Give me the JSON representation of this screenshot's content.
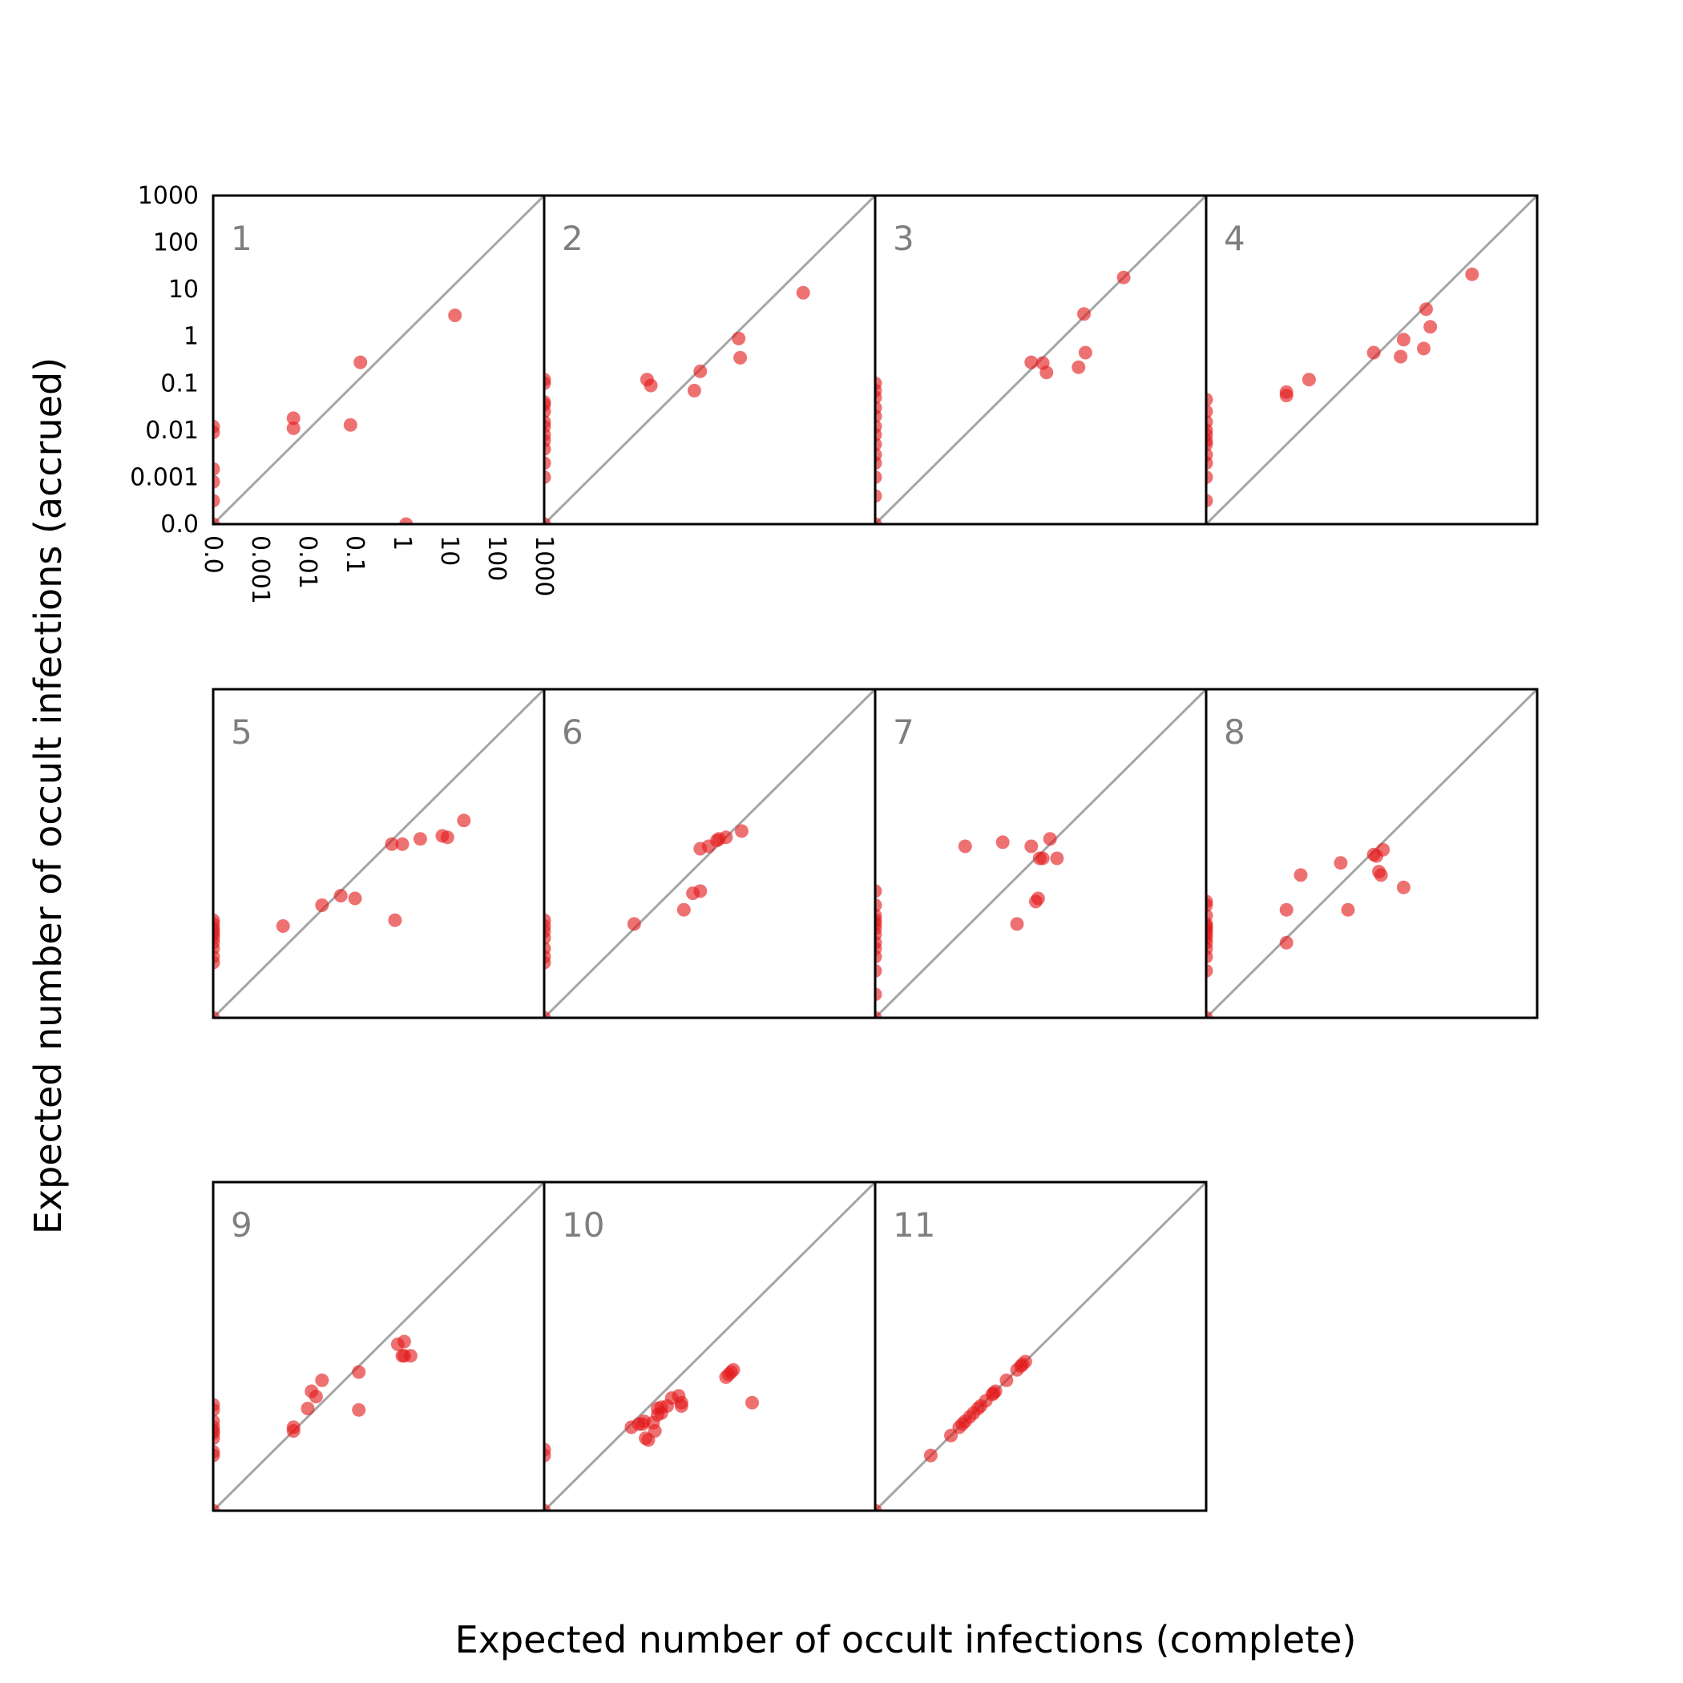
{
  "chart_data": {
    "type": "scatter",
    "title": "",
    "xlabel": "Expected number of occult infections (complete)",
    "ylabel": "Expected number of occult infections (accrued)",
    "scale": "symlog",
    "linthresh": 0.001,
    "xlim": [
      0,
      1000
    ],
    "ylim": [
      0,
      1000
    ],
    "tick_values": [
      0,
      0.001,
      0.01,
      0.1,
      1,
      10,
      100,
      1000
    ],
    "tick_labels": [
      "0.0",
      "0.001",
      "0.01",
      "0.1",
      "1",
      "10",
      "100",
      "1000"
    ],
    "reference_line": "y = x",
    "point_color": "#e41a1c",
    "line_color": "#a6a6a6",
    "panels": [
      {
        "label": "1",
        "points": [
          [
            0,
            0
          ],
          [
            0,
            0.0015
          ],
          [
            0,
            0.0009
          ],
          [
            0,
            0.0005
          ],
          [
            0,
            0.012
          ],
          [
            0,
            0.009
          ],
          [
            0.005,
            0.018
          ],
          [
            0.005,
            0.011
          ],
          [
            0.08,
            0.013
          ],
          [
            0.13,
            0.28
          ],
          [
            1.2,
            0
          ],
          [
            13,
            2.8
          ]
        ]
      },
      {
        "label": "2",
        "points": [
          [
            0,
            0
          ],
          [
            0,
            0.12
          ],
          [
            0,
            0.1
          ],
          [
            0,
            0.04
          ],
          [
            0,
            0.035
          ],
          [
            0,
            0.025
          ],
          [
            0,
            0.015
          ],
          [
            0,
            0.012
          ],
          [
            0,
            0.008
          ],
          [
            0,
            0.006
          ],
          [
            0,
            0.004
          ],
          [
            0,
            0.002
          ],
          [
            0,
            0.001
          ],
          [
            0.015,
            0.12
          ],
          [
            0.018,
            0.09
          ],
          [
            0.15,
            0.07
          ],
          [
            0.2,
            0.18
          ],
          [
            1.3,
            0.9
          ],
          [
            1.4,
            0.35
          ],
          [
            30,
            8.5
          ]
        ]
      },
      {
        "label": "3",
        "points": [
          [
            0,
            0
          ],
          [
            0,
            0.1
          ],
          [
            0,
            0.07
          ],
          [
            0,
            0.05
          ],
          [
            0,
            0.03
          ],
          [
            0,
            0.02
          ],
          [
            0,
            0.012
          ],
          [
            0,
            0.008
          ],
          [
            0,
            0.005
          ],
          [
            0,
            0.003
          ],
          [
            0,
            0.002
          ],
          [
            0,
            0.001
          ],
          [
            0,
            0.0006
          ],
          [
            0.2,
            0.28
          ],
          [
            0.35,
            0.27
          ],
          [
            0.42,
            0.17
          ],
          [
            2,
            0.22
          ],
          [
            2.8,
            0.45
          ],
          [
            2.6,
            3
          ],
          [
            18,
            18
          ]
        ]
      },
      {
        "label": "4",
        "points": [
          [
            0,
            0.0005
          ],
          [
            0,
            0.001
          ],
          [
            0,
            0.002
          ],
          [
            0,
            0.003
          ],
          [
            0,
            0.005
          ],
          [
            0,
            0.006
          ],
          [
            0,
            0.008
          ],
          [
            0,
            0.01
          ],
          [
            0,
            0.015
          ],
          [
            0,
            0.025
          ],
          [
            0,
            0.045
          ],
          [
            0.005,
            0.065
          ],
          [
            0.005,
            0.055
          ],
          [
            0.015,
            0.12
          ],
          [
            0.35,
            0.45
          ],
          [
            1.3,
            0.37
          ],
          [
            1.5,
            0.85
          ],
          [
            4,
            0.55
          ],
          [
            4.5,
            3.8
          ],
          [
            5.5,
            1.6
          ],
          [
            42,
            21
          ]
        ]
      },
      {
        "label": "5",
        "points": [
          [
            0,
            0
          ],
          [
            0,
            0.0015
          ],
          [
            0,
            0.002
          ],
          [
            0,
            0.003
          ],
          [
            0,
            0.004
          ],
          [
            0,
            0.005
          ],
          [
            0,
            0.006
          ],
          [
            0,
            0.007
          ],
          [
            0,
            0.008
          ],
          [
            0,
            0.01
          ],
          [
            0,
            0.012
          ],
          [
            0.003,
            0.009
          ],
          [
            0.02,
            0.025
          ],
          [
            0.05,
            0.04
          ],
          [
            0.1,
            0.035
          ],
          [
            0.6,
            0.5
          ],
          [
            0.7,
            0.012
          ],
          [
            1,
            0.5
          ],
          [
            2.4,
            0.65
          ],
          [
            7,
            0.75
          ],
          [
            9,
            0.7
          ],
          [
            20,
            1.6
          ]
        ]
      },
      {
        "label": "6",
        "points": [
          [
            0,
            0
          ],
          [
            0,
            0.0015
          ],
          [
            0,
            0.002
          ],
          [
            0,
            0.003
          ],
          [
            0,
            0.005
          ],
          [
            0,
            0.007
          ],
          [
            0,
            0.009
          ],
          [
            0,
            0.012
          ],
          [
            0.008,
            0.01
          ],
          [
            0.09,
            0.02
          ],
          [
            0.14,
            0.045
          ],
          [
            0.2,
            0.05
          ],
          [
            0.2,
            0.4
          ],
          [
            0.3,
            0.45
          ],
          [
            0.45,
            0.6
          ],
          [
            0.5,
            0.65
          ],
          [
            0.7,
            0.7
          ],
          [
            1.5,
            0.95
          ]
        ]
      },
      {
        "label": "7",
        "points": [
          [
            0,
            0
          ],
          [
            0,
            0.0005
          ],
          [
            0,
            0.001
          ],
          [
            0,
            0.002
          ],
          [
            0,
            0.003
          ],
          [
            0,
            0.004
          ],
          [
            0,
            0.006
          ],
          [
            0,
            0.008
          ],
          [
            0,
            0.01
          ],
          [
            0,
            0.012
          ],
          [
            0,
            0.015
          ],
          [
            0,
            0.025
          ],
          [
            0,
            0.05
          ],
          [
            0.008,
            0.45
          ],
          [
            0.05,
            0.55
          ],
          [
            0.1,
            0.01
          ],
          [
            0.2,
            0.45
          ],
          [
            0.25,
            0.03
          ],
          [
            0.28,
            0.035
          ],
          [
            0.3,
            0.25
          ],
          [
            0.35,
            0.25
          ],
          [
            0.5,
            0.65
          ],
          [
            0.7,
            0.25
          ]
        ]
      },
      {
        "label": "8",
        "points": [
          [
            0,
            0
          ],
          [
            0,
            0.001
          ],
          [
            0,
            0.002
          ],
          [
            0,
            0.003
          ],
          [
            0,
            0.004
          ],
          [
            0,
            0.005
          ],
          [
            0,
            0.006
          ],
          [
            0,
            0.007
          ],
          [
            0,
            0.008
          ],
          [
            0,
            0.009
          ],
          [
            0,
            0.01
          ],
          [
            0,
            0.015
          ],
          [
            0,
            0.025
          ],
          [
            0,
            0.03
          ],
          [
            0.005,
            0.02
          ],
          [
            0.005,
            0.004
          ],
          [
            0.01,
            0.11
          ],
          [
            0.07,
            0.2
          ],
          [
            0.1,
            0.02
          ],
          [
            0.35,
            0.3
          ],
          [
            0.4,
            0.28
          ],
          [
            0.45,
            0.13
          ],
          [
            0.5,
            0.11
          ],
          [
            0.55,
            0.38
          ],
          [
            1.5,
            0.06
          ]
        ]
      },
      {
        "label": "9",
        "points": [
          [
            0,
            0
          ],
          [
            0,
            0.0015
          ],
          [
            0,
            0.0018
          ],
          [
            0,
            0.0035
          ],
          [
            0,
            0.0045
          ],
          [
            0,
            0.005
          ],
          [
            0,
            0.006
          ],
          [
            0,
            0.008
          ],
          [
            0,
            0.014
          ],
          [
            0,
            0.018
          ],
          [
            0.005,
            0.005
          ],
          [
            0.005,
            0.006
          ],
          [
            0.01,
            0.015
          ],
          [
            0.012,
            0.035
          ],
          [
            0.015,
            0.027
          ],
          [
            0.02,
            0.06
          ],
          [
            0.12,
            0.014
          ],
          [
            0.12,
            0.09
          ],
          [
            0.8,
            0.35
          ],
          [
            1,
            0.2
          ],
          [
            1.1,
            0.2
          ],
          [
            1.1,
            0.4
          ],
          [
            1.5,
            0.2
          ]
        ]
      },
      {
        "label": "10",
        "points": [
          [
            0,
            0
          ],
          [
            0,
            0.002
          ],
          [
            0,
            0.0015
          ],
          [
            0.007,
            0.006
          ],
          [
            0.01,
            0.007
          ],
          [
            0.012,
            0.007
          ],
          [
            0.013,
            0.008
          ],
          [
            0.014,
            0.0035
          ],
          [
            0.016,
            0.0032
          ],
          [
            0.02,
            0.0075
          ],
          [
            0.022,
            0.005
          ],
          [
            0.025,
            0.011
          ],
          [
            0.025,
            0.015
          ],
          [
            0.03,
            0.012
          ],
          [
            0.03,
            0.016
          ],
          [
            0.04,
            0.017
          ],
          [
            0.05,
            0.025
          ],
          [
            0.07,
            0.028
          ],
          [
            0.08,
            0.02
          ],
          [
            0.08,
            0.017
          ],
          [
            0.7,
            0.07
          ],
          [
            0.8,
            0.08
          ],
          [
            0.9,
            0.09
          ],
          [
            1,
            0.1
          ],
          [
            2.5,
            0.02
          ]
        ]
      },
      {
        "label": "11",
        "points": [
          [
            0,
            0
          ],
          [
            0.0015,
            0.0015
          ],
          [
            0.004,
            0.004
          ],
          [
            0.006,
            0.006
          ],
          [
            0.007,
            0.007
          ],
          [
            0.008,
            0.008
          ],
          [
            0.01,
            0.01
          ],
          [
            0.012,
            0.012
          ],
          [
            0.015,
            0.015
          ],
          [
            0.017,
            0.017
          ],
          [
            0.022,
            0.022
          ],
          [
            0.03,
            0.03
          ],
          [
            0.032,
            0.032
          ],
          [
            0.035,
            0.035
          ],
          [
            0.06,
            0.06
          ],
          [
            0.1,
            0.1
          ],
          [
            0.12,
            0.12
          ],
          [
            0.13,
            0.13
          ],
          [
            0.15,
            0.15
          ]
        ]
      }
    ]
  }
}
